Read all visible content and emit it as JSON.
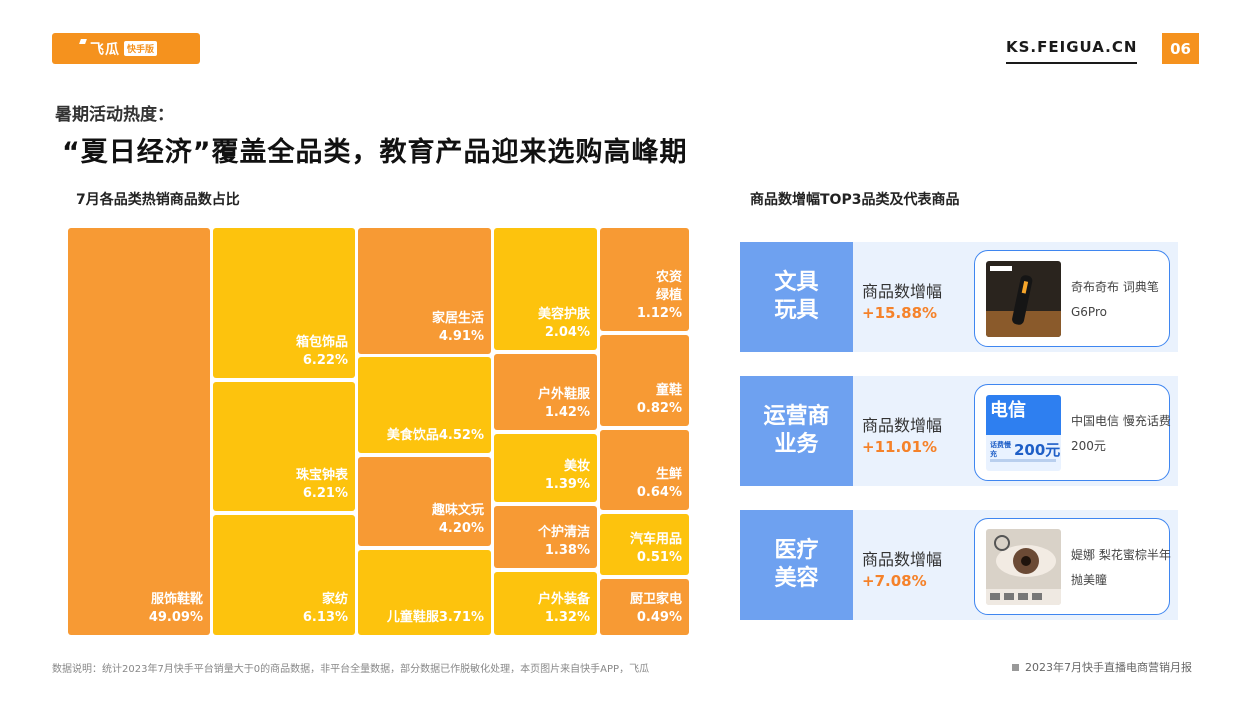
{
  "brand": {
    "name": "飞瓜",
    "tag": "快手版"
  },
  "header": {
    "site": "KS.FEIGUA.CN",
    "page": "06"
  },
  "kicker": "暑期活动热度：",
  "headline": "“夏日经济”覆盖全品类，教育产品迎来选购高峰期",
  "left_title": "7月各品类热销商品数占比",
  "right_title": "商品数增幅TOP3品类及代表商品",
  "chart_data": {
    "type": "treemap",
    "title": "7月各品类热销商品数占比",
    "unit": "%",
    "items": [
      {
        "name": "服饰鞋靴",
        "value": 49.09,
        "label": "49.09%",
        "color": "#f79a34"
      },
      {
        "name": "箱包饰品",
        "value": 6.22,
        "label": "6.22%",
        "color": "#fdc30d"
      },
      {
        "name": "珠宝钟表",
        "value": 6.21,
        "label": "6.21%",
        "color": "#fdc30d"
      },
      {
        "name": "家纺",
        "value": 6.13,
        "label": "6.13%",
        "color": "#fdc30d"
      },
      {
        "name": "家居生活",
        "value": 4.91,
        "label": "4.91%",
        "color": "#f79a34"
      },
      {
        "name": "美食饮品",
        "value": 4.52,
        "label": "美食饮品4.52%",
        "color": "#fdc30d"
      },
      {
        "name": "趣味文玩",
        "value": 4.2,
        "label": "4.20%",
        "color": "#f79a34"
      },
      {
        "name": "儿童鞋服",
        "value": 3.71,
        "label": "儿童鞋服3.71%",
        "color": "#fdc30d"
      },
      {
        "name": "美容护肤",
        "value": 2.04,
        "label": "2.04%",
        "color": "#fdc30d"
      },
      {
        "name": "户外鞋服",
        "value": 1.42,
        "label": "1.42%",
        "color": "#f79a34"
      },
      {
        "name": "美妆",
        "value": 1.39,
        "label": "1.39%",
        "color": "#fdc30d"
      },
      {
        "name": "个护清洁",
        "value": 1.38,
        "label": "1.38%",
        "color": "#f79a34"
      },
      {
        "name": "户外装备",
        "value": 1.32,
        "label": "1.32%",
        "color": "#fdc30d"
      },
      {
        "name": "农资绿植",
        "value": 1.12,
        "label": "1.12%",
        "color": "#f79a34"
      },
      {
        "name": "童鞋",
        "value": 0.82,
        "label": "0.82%",
        "color": "#f79a34"
      },
      {
        "name": "生鲜",
        "value": 0.64,
        "label": "0.64%",
        "color": "#f79a34"
      },
      {
        "name": "汽车用品",
        "value": 0.51,
        "label": "0.51%",
        "color": "#fdc30d"
      },
      {
        "name": "厨卫家电",
        "value": 0.49,
        "label": "0.49%",
        "color": "#f79a34"
      }
    ]
  },
  "tiles": {
    "clothing": {
      "name": "服饰鞋靴",
      "pct": "49.09%"
    },
    "bags": {
      "name": "箱包饰品",
      "pct": "6.22%"
    },
    "jewelry": {
      "name": "珠宝钟表",
      "pct": "6.21%"
    },
    "textile": {
      "name": "家纺",
      "pct": "6.13%"
    },
    "home": {
      "name": "家居生活",
      "pct": "4.91%"
    },
    "food": {
      "name": "美食饮品4.52%"
    },
    "collect": {
      "name": "趣味文玩",
      "pct": "4.20%"
    },
    "kids": {
      "name": "儿童鞋服3.71%"
    },
    "skincare": {
      "name": "美容护肤",
      "pct": "2.04%"
    },
    "outdoor_wear": {
      "name": "户外鞋服",
      "pct": "1.42%"
    },
    "makeup": {
      "name": "美妆",
      "pct": "1.39%"
    },
    "care": {
      "name": "个护清洁",
      "pct": "1.38%"
    },
    "outdoor_gear": {
      "name": "户外装备",
      "pct": "1.32%"
    },
    "agri": {
      "name1": "农资",
      "name2": "绿植",
      "pct": "1.12%"
    },
    "kidshoes": {
      "name": "童鞋",
      "pct": "0.82%"
    },
    "fresh": {
      "name": "生鲜",
      "pct": "0.64%"
    },
    "auto": {
      "name": "汽车用品",
      "pct": "0.51%"
    },
    "kitchen": {
      "name": "厨卫家电",
      "pct": "0.49%"
    }
  },
  "cards": [
    {
      "cat1": "文具",
      "cat2": "玩具",
      "metric_label": "商品数增幅",
      "metric_value": "+15.88%",
      "product": "奇布奇布 词典笔G6Pro",
      "thumb_icon": "dictionary-pen-icon"
    },
    {
      "cat1": "运营商",
      "cat2": "业务",
      "metric_label": "商品数增幅",
      "metric_value": "+11.01%",
      "product": "中国电信 慢充话费200元",
      "thumb_icon": "phone-credit-icon",
      "thumb_title": "电信",
      "thumb_text": "话费慢充",
      "thumb_amount": "200元"
    },
    {
      "cat1": "医疗",
      "cat2": "美容",
      "metric_label": "商品数增幅",
      "metric_value": "+7.08%",
      "product": "媞娜 梨花蜜棕半年抛美瞳",
      "thumb_icon": "contact-lens-icon"
    }
  ],
  "footnote": "数据说明：统计2023年7月快手平台销量大于0的商品数据，非平台全量数据，部分数据已作脱敏化处理，本页图片来自快手APP，飞瓜",
  "footright": "2023年7月快手直播电商营销月报"
}
